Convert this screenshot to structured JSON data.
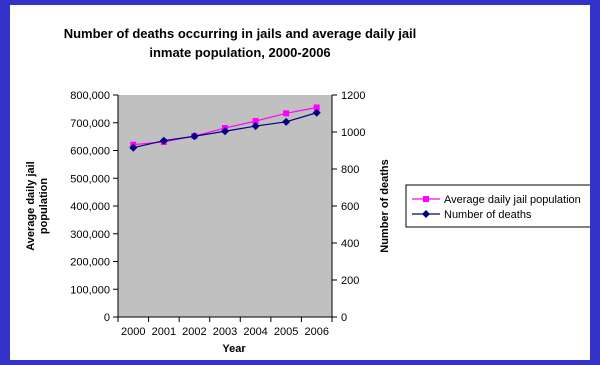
{
  "chart_data": {
    "type": "line",
    "title": "Number of deaths occurring in jails and average daily jail inmate population, 2000-2006",
    "title_lines": [
      "Number of deaths occurring in jails and average daily jail",
      "inmate population, 2000-2006"
    ],
    "xlabel": "Year",
    "ylabel_left": "Average daily jail population",
    "ylabel_left_lines": [
      "Average daily jail",
      "population"
    ],
    "ylabel_right": "Number of deaths",
    "categories": [
      "2000",
      "2001",
      "2002",
      "2003",
      "2004",
      "2005",
      "2006"
    ],
    "y_left": {
      "range": [
        0,
        800000
      ],
      "ticks": [
        "0",
        "100,000",
        "200,000",
        "300,000",
        "400,000",
        "500,000",
        "600,000",
        "700,000",
        "800,000"
      ]
    },
    "y_right": {
      "range": [
        0,
        1200
      ],
      "ticks": [
        "0",
        "200",
        "400",
        "600",
        "800",
        "1000",
        "1200"
      ]
    },
    "series": [
      {
        "name": "Average daily jail population",
        "axis": "left",
        "color": "#ff00ff",
        "marker": "square",
        "values": [
          621000,
          631000,
          652000,
          681000,
          706000,
          734000,
          755000
        ]
      },
      {
        "name": "Number of deaths",
        "axis": "right",
        "color": "#000080",
        "marker": "diamond",
        "values": [
          915,
          953,
          977,
          1004,
          1032,
          1055,
          1104
        ]
      }
    ],
    "legend_position": "right",
    "grid": false,
    "plot_background": "#c0c0c0"
  }
}
